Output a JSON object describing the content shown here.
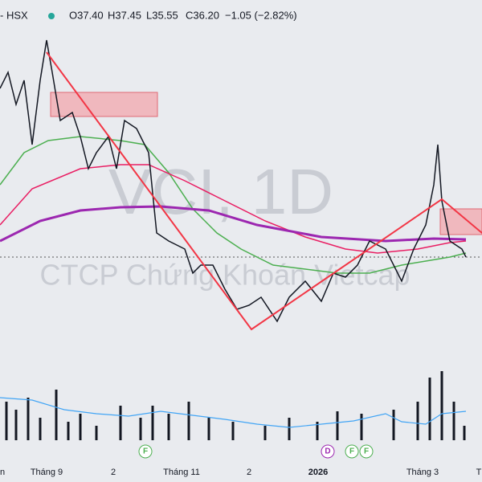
{
  "header": {
    "symbol": "- HSX",
    "open": "O37.40",
    "high": "H37.45",
    "low": "L35.55",
    "close": "C36.20",
    "change": "−1.05 (−2.82%)"
  },
  "watermark": {
    "title": "VCI, 1D",
    "subtitle": "CTCP Chứng Khoán Vietcap"
  },
  "x_axis": {
    "labels": [
      "n",
      "Tháng 9",
      "2",
      "Tháng 11",
      "2",
      "2026",
      "Tháng 3",
      "T"
    ]
  },
  "events": [
    "F",
    "D",
    "F",
    "F"
  ]
}
